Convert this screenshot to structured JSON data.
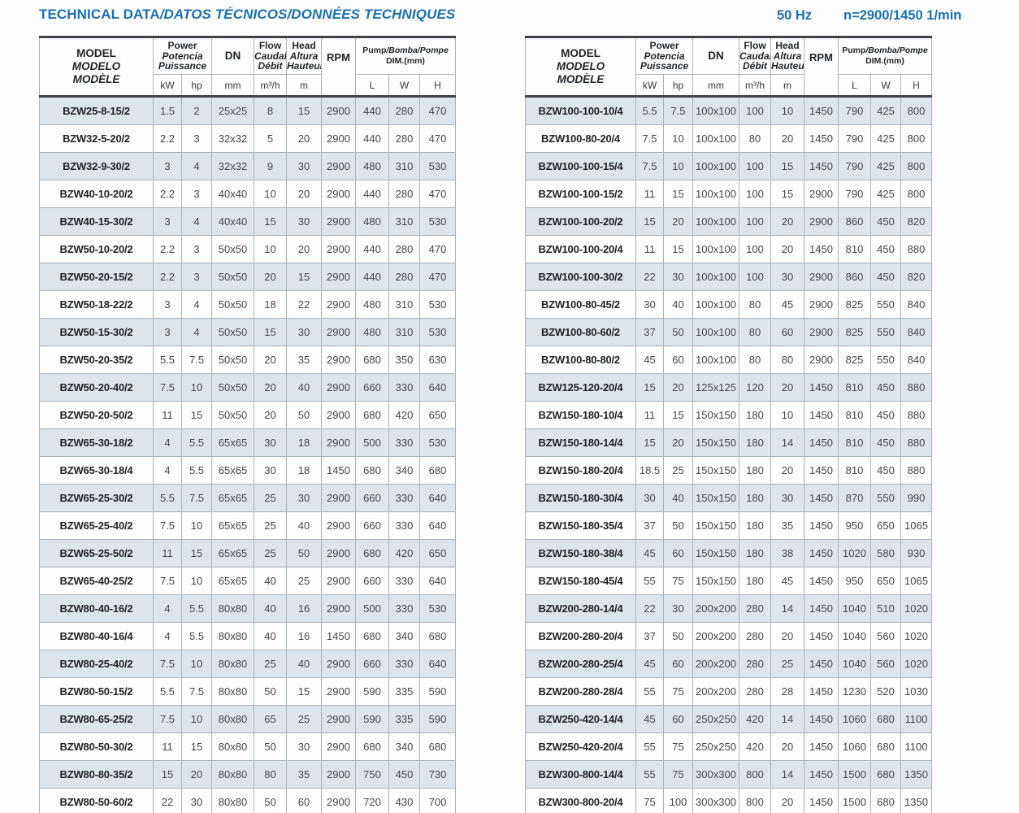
{
  "page": {
    "title_en": "TECHNICAL DATA",
    "title_rest": "/DATOS TÉCNICOS/DONNÉES TECHNIQUES",
    "frequency": "50 Hz",
    "speed": "n=2900/1450 1/min"
  },
  "colors": {
    "title_blue": "#1a6fae",
    "row_shade": "#dde4ea",
    "grid_line": "#aab2b9",
    "heavy_line": "#3f4347",
    "text_dark": "#43474a"
  },
  "header": {
    "model": [
      "MODEL",
      "MODELO",
      "MODÈLE"
    ],
    "power": [
      "Power",
      "Potencia",
      "Puissance"
    ],
    "power_units": [
      "kW",
      "hp"
    ],
    "dn": "DN",
    "dn_unit": "mm",
    "flow": [
      "Flow",
      "Caudal",
      "Débit"
    ],
    "flow_unit": "m³/h",
    "head": [
      "Head",
      "Altura",
      "Hauteur"
    ],
    "head_unit": "m",
    "rpm": "RPM",
    "dim_en": "Pump",
    "dim_rest": "/Bomba/Pompe",
    "dim_unit": "DIM.(mm)",
    "dim_units": [
      "L",
      "W",
      "H"
    ]
  },
  "tables": {
    "left": [
      [
        "BZW25-8-15/2",
        "1.5",
        "2",
        "25x25",
        "8",
        "15",
        "2900",
        "440",
        "280",
        "470"
      ],
      [
        "BZW32-5-20/2",
        "2.2",
        "3",
        "32x32",
        "5",
        "20",
        "2900",
        "440",
        "280",
        "470"
      ],
      [
        "BZW32-9-30/2",
        "3",
        "4",
        "32x32",
        "9",
        "30",
        "2900",
        "480",
        "310",
        "530"
      ],
      [
        "BZW40-10-20/2",
        "2.2",
        "3",
        "40x40",
        "10",
        "20",
        "2900",
        "440",
        "280",
        "470"
      ],
      [
        "BZW40-15-30/2",
        "3",
        "4",
        "40x40",
        "15",
        "30",
        "2900",
        "480",
        "310",
        "530"
      ],
      [
        "BZW50-10-20/2",
        "2.2",
        "3",
        "50x50",
        "10",
        "20",
        "2900",
        "440",
        "280",
        "470"
      ],
      [
        "BZW50-20-15/2",
        "2.2",
        "3",
        "50x50",
        "20",
        "15",
        "2900",
        "440",
        "280",
        "470"
      ],
      [
        "BZW50-18-22/2",
        "3",
        "4",
        "50x50",
        "18",
        "22",
        "2900",
        "480",
        "310",
        "530"
      ],
      [
        "BZW50-15-30/2",
        "3",
        "4",
        "50x50",
        "15",
        "30",
        "2900",
        "480",
        "310",
        "530"
      ],
      [
        "BZW50-20-35/2",
        "5.5",
        "7.5",
        "50x50",
        "20",
        "35",
        "2900",
        "680",
        "350",
        "630"
      ],
      [
        "BZW50-20-40/2",
        "7.5",
        "10",
        "50x50",
        "20",
        "40",
        "2900",
        "660",
        "330",
        "640"
      ],
      [
        "BZW50-20-50/2",
        "11",
        "15",
        "50x50",
        "20",
        "50",
        "2900",
        "680",
        "420",
        "650"
      ],
      [
        "BZW65-30-18/2",
        "4",
        "5.5",
        "65x65",
        "30",
        "18",
        "2900",
        "500",
        "330",
        "530"
      ],
      [
        "BZW65-30-18/4",
        "4",
        "5.5",
        "65x65",
        "30",
        "18",
        "1450",
        "680",
        "340",
        "680"
      ],
      [
        "BZW65-25-30/2",
        "5.5",
        "7.5",
        "65x65",
        "25",
        "30",
        "2900",
        "660",
        "330",
        "640"
      ],
      [
        "BZW65-25-40/2",
        "7.5",
        "10",
        "65x65",
        "25",
        "40",
        "2900",
        "660",
        "330",
        "640"
      ],
      [
        "BZW65-25-50/2",
        "11",
        "15",
        "65x65",
        "25",
        "50",
        "2900",
        "680",
        "420",
        "650"
      ],
      [
        "BZW65-40-25/2",
        "7.5",
        "10",
        "65x65",
        "40",
        "25",
        "2900",
        "660",
        "330",
        "640"
      ],
      [
        "BZW80-40-16/2",
        "4",
        "5.5",
        "80x80",
        "40",
        "16",
        "2900",
        "500",
        "330",
        "530"
      ],
      [
        "BZW80-40-16/4",
        "4",
        "5.5",
        "80x80",
        "40",
        "16",
        "1450",
        "680",
        "340",
        "680"
      ],
      [
        "BZW80-25-40/2",
        "7.5",
        "10",
        "80x80",
        "25",
        "40",
        "2900",
        "660",
        "330",
        "640"
      ],
      [
        "BZW80-50-15/2",
        "5.5",
        "7.5",
        "80x80",
        "50",
        "15",
        "2900",
        "590",
        "335",
        "590"
      ],
      [
        "BZW80-65-25/2",
        "7.5",
        "10",
        "80x80",
        "65",
        "25",
        "2900",
        "590",
        "335",
        "590"
      ],
      [
        "BZW80-50-30/2",
        "11",
        "15",
        "80x80",
        "50",
        "30",
        "2900",
        "680",
        "340",
        "680"
      ],
      [
        "BZW80-80-35/2",
        "15",
        "20",
        "80x80",
        "80",
        "35",
        "2900",
        "750",
        "450",
        "730"
      ],
      [
        "BZW80-50-60/2",
        "22",
        "30",
        "80x80",
        "50",
        "60",
        "2900",
        "720",
        "430",
        "700"
      ]
    ],
    "right": [
      [
        "BZW100-100-10/4",
        "5.5",
        "7.5",
        "100x100",
        "100",
        "10",
        "1450",
        "790",
        "425",
        "800"
      ],
      [
        "BZW100-80-20/4",
        "7.5",
        "10",
        "100x100",
        "80",
        "20",
        "1450",
        "790",
        "425",
        "800"
      ],
      [
        "BZW100-100-15/4",
        "7.5",
        "10",
        "100x100",
        "100",
        "15",
        "1450",
        "790",
        "425",
        "800"
      ],
      [
        "BZW100-100-15/2",
        "11",
        "15",
        "100x100",
        "100",
        "15",
        "2900",
        "790",
        "425",
        "800"
      ],
      [
        "BZW100-100-20/2",
        "15",
        "20",
        "100x100",
        "100",
        "20",
        "2900",
        "860",
        "450",
        "820"
      ],
      [
        "BZW100-100-20/4",
        "11",
        "15",
        "100x100",
        "100",
        "20",
        "1450",
        "810",
        "450",
        "880"
      ],
      [
        "BZW100-100-30/2",
        "22",
        "30",
        "100x100",
        "100",
        "30",
        "2900",
        "860",
        "450",
        "820"
      ],
      [
        "BZW100-80-45/2",
        "30",
        "40",
        "100x100",
        "80",
        "45",
        "2900",
        "825",
        "550",
        "840"
      ],
      [
        "BZW100-80-60/2",
        "37",
        "50",
        "100x100",
        "80",
        "60",
        "2900",
        "825",
        "550",
        "840"
      ],
      [
        "BZW100-80-80/2",
        "45",
        "60",
        "100x100",
        "80",
        "80",
        "2900",
        "825",
        "550",
        "840"
      ],
      [
        "BZW125-120-20/4",
        "15",
        "20",
        "125x125",
        "120",
        "20",
        "1450",
        "810",
        "450",
        "880"
      ],
      [
        "BZW150-180-10/4",
        "11",
        "15",
        "150x150",
        "180",
        "10",
        "1450",
        "810",
        "450",
        "880"
      ],
      [
        "BZW150-180-14/4",
        "15",
        "20",
        "150x150",
        "180",
        "14",
        "1450",
        "810",
        "450",
        "880"
      ],
      [
        "BZW150-180-20/4",
        "18.5",
        "25",
        "150x150",
        "180",
        "20",
        "1450",
        "810",
        "450",
        "880"
      ],
      [
        "BZW150-180-30/4",
        "30",
        "40",
        "150x150",
        "180",
        "30",
        "1450",
        "870",
        "550",
        "990"
      ],
      [
        "BZW150-180-35/4",
        "37",
        "50",
        "150x150",
        "180",
        "35",
        "1450",
        "950",
        "650",
        "1065"
      ],
      [
        "BZW150-180-38/4",
        "45",
        "60",
        "150x150",
        "180",
        "38",
        "1450",
        "1020",
        "580",
        "930"
      ],
      [
        "BZW150-180-45/4",
        "55",
        "75",
        "150x150",
        "180",
        "45",
        "1450",
        "950",
        "650",
        "1065"
      ],
      [
        "BZW200-280-14/4",
        "22",
        "30",
        "200x200",
        "280",
        "14",
        "1450",
        "1040",
        "510",
        "1020"
      ],
      [
        "BZW200-280-20/4",
        "37",
        "50",
        "200x200",
        "280",
        "20",
        "1450",
        "1040",
        "560",
        "1020"
      ],
      [
        "BZW200-280-25/4",
        "45",
        "60",
        "200x200",
        "280",
        "25",
        "1450",
        "1040",
        "560",
        "1020"
      ],
      [
        "BZW200-280-28/4",
        "55",
        "75",
        "200x200",
        "280",
        "28",
        "1450",
        "1230",
        "520",
        "1030"
      ],
      [
        "BZW250-420-14/4",
        "45",
        "60",
        "250x250",
        "420",
        "14",
        "1450",
        "1060",
        "680",
        "1100"
      ],
      [
        "BZW250-420-20/4",
        "55",
        "75",
        "250x250",
        "420",
        "20",
        "1450",
        "1060",
        "680",
        "1100"
      ],
      [
        "BZW300-800-14/4",
        "55",
        "75",
        "300x300",
        "800",
        "14",
        "1450",
        "1500",
        "680",
        "1350"
      ],
      [
        "BZW300-800-20/4",
        "75",
        "100",
        "300x300",
        "800",
        "20",
        "1450",
        "1500",
        "680",
        "1350"
      ]
    ]
  }
}
